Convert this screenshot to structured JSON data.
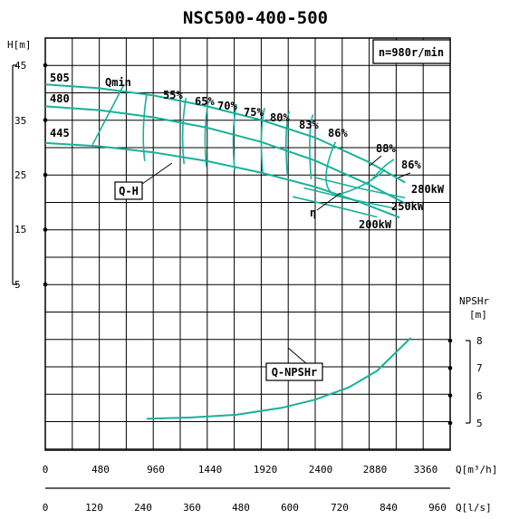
{
  "chart_data": {
    "type": "line",
    "title": "NSC500-400-500",
    "speed": "n=980r/min",
    "x_flow_m3h": {
      "unit": "Q[m³/h]",
      "range": [
        0,
        3600
      ],
      "ticks": [
        "0",
        "480",
        "960",
        "1440",
        "1920",
        "2400",
        "2880",
        "3360"
      ]
    },
    "x_flow_ls": {
      "unit": "Q[l/s]",
      "range": [
        0,
        1000
      ],
      "ticks": [
        "0",
        "120",
        "240",
        "360",
        "480",
        "600",
        "720",
        "840",
        "960"
      ]
    },
    "y_head": {
      "label": "H[m]",
      "range": [
        0,
        45
      ],
      "ticks": [
        "45",
        "35",
        "25",
        "15",
        "5"
      ]
    },
    "y_npsh": {
      "label": "NPSHr",
      "unit": "[m]",
      "range": [
        4,
        8
      ],
      "ticks": [
        "8",
        "7",
        "6",
        "5"
      ]
    },
    "curve_labels": {
      "qh": "Q-H",
      "qnpsh": "Q-NPSHr",
      "eta": "η",
      "qmin": "Qmin"
    },
    "series": [
      {
        "name": "505",
        "x": [
          0,
          480,
          960,
          1440,
          1920,
          2400,
          2880,
          3200
        ],
        "y": [
          41.5,
          40.8,
          39.5,
          37.5,
          35.0,
          31.8,
          27.3,
          23.6
        ]
      },
      {
        "name": "480",
        "x": [
          0,
          480,
          960,
          1440,
          1920,
          2400,
          2880,
          3200
        ],
        "y": [
          37.5,
          36.8,
          35.5,
          33.6,
          31.0,
          27.6,
          23.2,
          19.8
        ]
      },
      {
        "name": "445",
        "x": [
          0,
          480,
          960,
          1440,
          1920,
          2400,
          2800,
          3150
        ],
        "y": [
          30.8,
          30.2,
          29.1,
          27.5,
          25.4,
          22.8,
          20.0,
          17.2
        ]
      }
    ],
    "efficiency_labels": [
      "55%",
      "65%",
      "70%",
      "75%",
      "80%",
      "83%",
      "86%",
      "88%",
      "86%"
    ],
    "power_labels": [
      "280kW",
      "250kW",
      "200kW"
    ],
    "npsh_curve": {
      "x": [
        900,
        1300,
        1700,
        2100,
        2400,
        2700,
        2950,
        3250
      ],
      "y": [
        5.15,
        5.2,
        5.3,
        5.55,
        5.85,
        6.3,
        6.9,
        8.1
      ]
    }
  }
}
